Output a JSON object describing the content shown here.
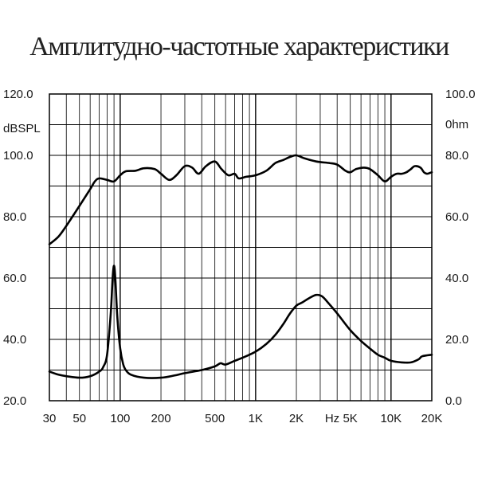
{
  "chart_data": {
    "type": "line",
    "title": "Амплитудно-частотные характеристики",
    "x_scale": "log",
    "xlim": [
      30,
      20000
    ],
    "x_ticks": [
      {
        "value": 30,
        "label": "30"
      },
      {
        "value": 50,
        "label": "50"
      },
      {
        "value": 100,
        "label": "100"
      },
      {
        "value": 200,
        "label": "200"
      },
      {
        "value": 500,
        "label": "500"
      },
      {
        "value": 1000,
        "label": "1K"
      },
      {
        "value": 2000,
        "label": "2K"
      },
      {
        "value": 5000,
        "label": "5K"
      },
      {
        "value": 10000,
        "label": "10K"
      },
      {
        "value": 20000,
        "label": "20K"
      }
    ],
    "x_unit_label": "Hz",
    "y_left": {
      "unit_label": "dBSPL",
      "ylim": [
        20,
        120
      ],
      "ticks": [
        "20.0",
        "40.0",
        "60.0",
        "80.0",
        "100.0",
        "120.0"
      ]
    },
    "y_right": {
      "unit_label": "0hm",
      "ylim": [
        0,
        100
      ],
      "ticks": [
        "0.0",
        "20.0",
        "40.0",
        "60.0",
        "80.0",
        "100.0"
      ]
    },
    "grid": true,
    "series": [
      {
        "axis": "left",
        "color": "#000000",
        "points": [
          [
            30,
            71
          ],
          [
            35,
            73.5
          ],
          [
            40,
            77
          ],
          [
            50,
            83.5
          ],
          [
            60,
            89
          ],
          [
            65,
            91.5
          ],
          [
            70,
            92.5
          ],
          [
            80,
            92
          ],
          [
            90,
            91.5
          ],
          [
            100,
            93.5
          ],
          [
            110,
            94.8
          ],
          [
            130,
            95
          ],
          [
            150,
            95.8
          ],
          [
            180,
            95.5
          ],
          [
            200,
            94
          ],
          [
            230,
            92
          ],
          [
            260,
            93.5
          ],
          [
            300,
            96.5
          ],
          [
            340,
            96
          ],
          [
            380,
            94
          ],
          [
            430,
            96.5
          ],
          [
            500,
            98
          ],
          [
            560,
            95.5
          ],
          [
            630,
            93.5
          ],
          [
            700,
            94
          ],
          [
            750,
            92.5
          ],
          [
            850,
            93
          ],
          [
            1000,
            93.5
          ],
          [
            1200,
            95
          ],
          [
            1400,
            97.5
          ],
          [
            1600,
            98.5
          ],
          [
            1800,
            99.5
          ],
          [
            2000,
            100
          ],
          [
            2300,
            99
          ],
          [
            2800,
            98
          ],
          [
            3500,
            97.5
          ],
          [
            4000,
            97
          ],
          [
            4600,
            95
          ],
          [
            5000,
            94.5
          ],
          [
            5500,
            95.5
          ],
          [
            6300,
            96
          ],
          [
            7000,
            95.5
          ],
          [
            8000,
            93.5
          ],
          [
            9000,
            91.5
          ],
          [
            10000,
            93
          ],
          [
            11000,
            94
          ],
          [
            12000,
            94
          ],
          [
            13000,
            94.5
          ],
          [
            14000,
            95.5
          ],
          [
            15000,
            96.5
          ],
          [
            16500,
            96
          ],
          [
            17500,
            94.5
          ],
          [
            18500,
            94
          ],
          [
            20000,
            94.5
          ]
        ]
      },
      {
        "axis": "right",
        "color": "#000000",
        "points": [
          [
            30,
            9.5
          ],
          [
            35,
            8.5
          ],
          [
            40,
            8
          ],
          [
            50,
            7.5
          ],
          [
            60,
            8
          ],
          [
            70,
            9.5
          ],
          [
            75,
            11
          ],
          [
            80,
            15
          ],
          [
            85,
            28
          ],
          [
            88,
            40
          ],
          [
            90,
            44
          ],
          [
            92,
            40
          ],
          [
            95,
            28
          ],
          [
            100,
            17
          ],
          [
            105,
            12
          ],
          [
            110,
            10
          ],
          [
            120,
            8.5
          ],
          [
            150,
            7.5
          ],
          [
            200,
            7.5
          ],
          [
            250,
            8.2
          ],
          [
            300,
            9
          ],
          [
            400,
            10
          ],
          [
            500,
            11.2
          ],
          [
            550,
            12.2
          ],
          [
            600,
            11.8
          ],
          [
            700,
            13
          ],
          [
            800,
            14
          ],
          [
            1000,
            16
          ],
          [
            1200,
            18.5
          ],
          [
            1400,
            21.5
          ],
          [
            1600,
            25
          ],
          [
            1800,
            28.5
          ],
          [
            2000,
            31
          ],
          [
            2200,
            32
          ],
          [
            2500,
            33.5
          ],
          [
            2800,
            34.5
          ],
          [
            3100,
            34
          ],
          [
            3500,
            31.5
          ],
          [
            4000,
            28.5
          ],
          [
            5000,
            23
          ],
          [
            6000,
            19.5
          ],
          [
            7000,
            17
          ],
          [
            8000,
            15
          ],
          [
            9000,
            14
          ],
          [
            10000,
            13
          ],
          [
            12000,
            12.5
          ],
          [
            14000,
            12.5
          ],
          [
            16000,
            13.5
          ],
          [
            17000,
            14.5
          ],
          [
            20000,
            15
          ]
        ]
      }
    ]
  }
}
